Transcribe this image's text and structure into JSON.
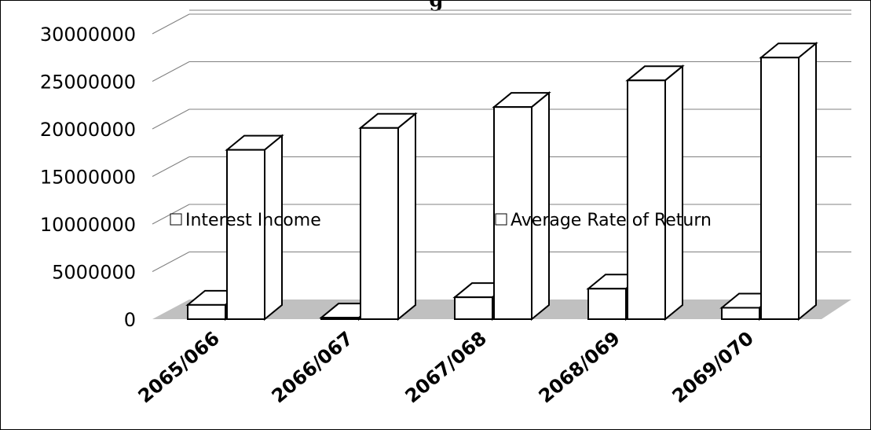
{
  "chart_data": {
    "type": "bar",
    "title": "g",
    "categories": [
      "2065/066",
      "2066/067",
      "2067/068",
      "2068/069",
      "2069/070"
    ],
    "series": [
      {
        "name": "Interest Income",
        "values": [
          1500000,
          150000,
          2300000,
          3200000,
          1200000
        ]
      },
      {
        "name": "Average Rate of Return",
        "values": [
          17800000,
          20100000,
          22300000,
          25100000,
          27500000
        ]
      }
    ],
    "y_ticks": [
      "0",
      "5000000",
      "10000000",
      "15000000",
      "20000000",
      "25000000",
      "30000000"
    ],
    "ylim": [
      0,
      30000000
    ],
    "legend_position": "middle",
    "grid": true,
    "style": "3d-wireframe",
    "colors": {
      "floor": "#c0c0c0",
      "grid": "#808080",
      "outline": "#000000",
      "bar_fill": "#ffffff"
    }
  }
}
